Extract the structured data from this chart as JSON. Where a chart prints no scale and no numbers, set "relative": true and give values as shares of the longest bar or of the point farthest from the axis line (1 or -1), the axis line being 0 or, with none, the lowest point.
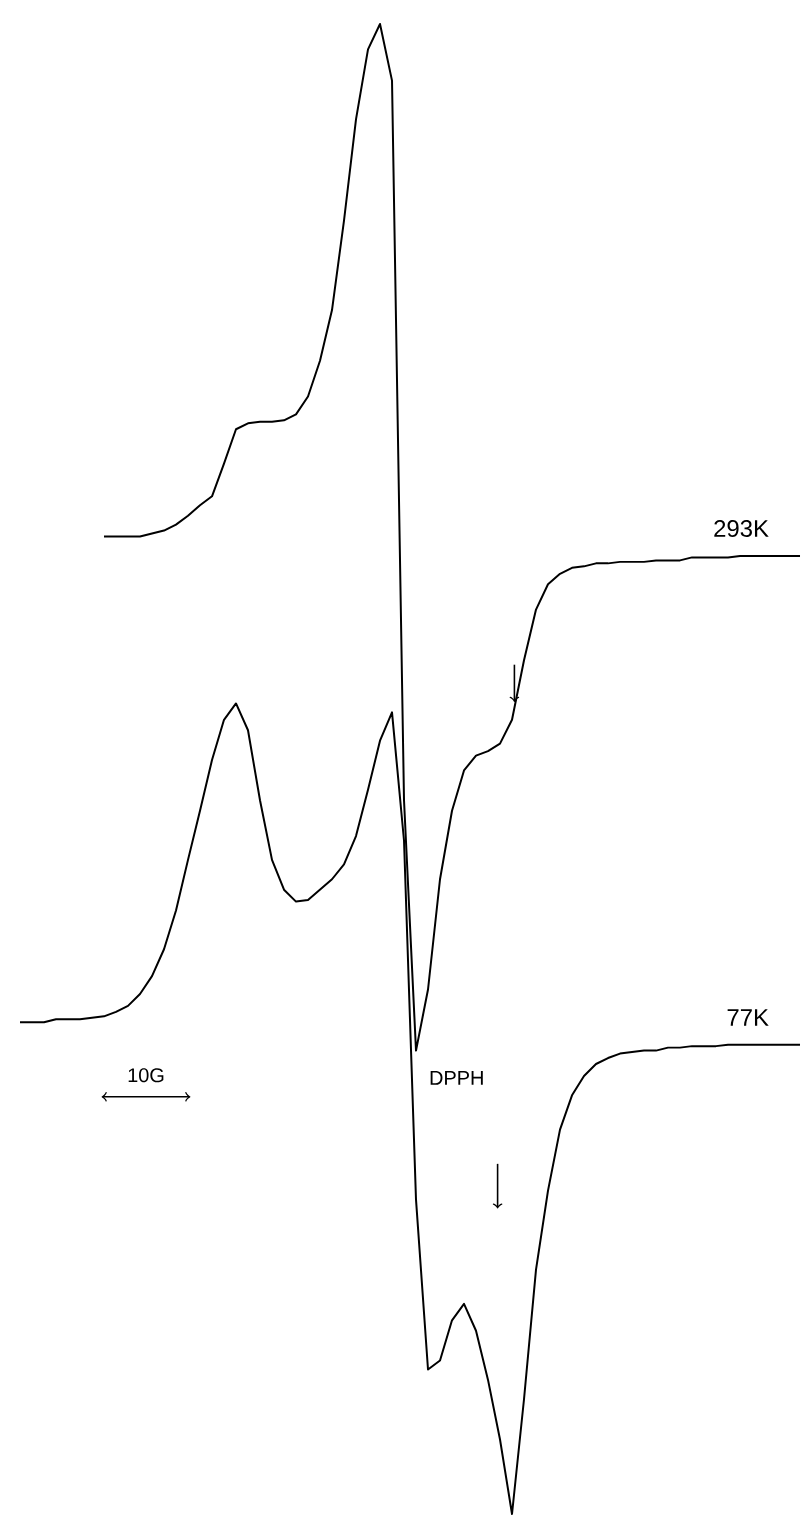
{
  "chart_data": {
    "type": "line",
    "relative": true,
    "legend": false,
    "marker": "none",
    "line_style": "solid",
    "categories": [
      null,
      null,
      null,
      null,
      null,
      null,
      null,
      null,
      null,
      null,
      null,
      null,
      null,
      null,
      null,
      null,
      null,
      null,
      null,
      null,
      null,
      null,
      null,
      null,
      null,
      null,
      null,
      null,
      null,
      null,
      null,
      null,
      null,
      null,
      null,
      null,
      null,
      null,
      null,
      null,
      null,
      null,
      null,
      null,
      null,
      null,
      null,
      null,
      null,
      null,
      null,
      null,
      null,
      null,
      null,
      null,
      null,
      null,
      null,
      null,
      null,
      null,
      null,
      null,
      null,
      null
    ],
    "series": [
      {
        "name": "293K",
        "color": "#000000",
        "values": [
          null,
          null,
          null,
          null,
          null,
          null,
          null,
          0.656,
          0.656,
          0.656,
          0.656,
          0.658,
          0.66,
          0.664,
          0.67,
          0.677,
          0.683,
          0.705,
          0.728,
          0.732,
          0.733,
          0.733,
          0.734,
          0.738,
          0.75,
          0.774,
          0.808,
          0.868,
          0.936,
          0.983,
          1.0,
          0.962,
          0.479,
          0.311,
          0.352,
          0.426,
          0.472,
          0.499,
          0.509,
          0.512,
          0.517,
          0.533,
          0.573,
          0.607,
          0.624,
          0.631,
          0.635,
          0.636,
          0.638,
          0.638,
          0.639,
          0.639,
          0.639,
          0.64,
          0.64,
          0.64,
          0.642,
          0.642,
          0.642,
          0.642,
          0.643,
          0.643,
          0.643,
          0.643,
          0.643,
          0.643
        ]
      },
      {
        "name": "77K",
        "color": "#000000",
        "values": [
          0.33,
          0.33,
          0.33,
          0.332,
          0.332,
          0.332,
          0.333,
          0.334,
          0.337,
          0.341,
          0.349,
          0.361,
          0.379,
          0.405,
          0.439,
          0.472,
          0.506,
          0.533,
          0.544,
          0.526,
          0.479,
          0.439,
          0.419,
          0.411,
          0.412,
          0.419,
          0.426,
          0.436,
          0.455,
          0.486,
          0.519,
          0.538,
          0.452,
          0.211,
          0.097,
          0.103,
          0.13,
          0.141,
          0.123,
          0.09,
          0.05,
          0.0,
          0.077,
          0.164,
          0.217,
          0.258,
          0.281,
          0.294,
          0.302,
          0.306,
          0.309,
          0.31,
          0.311,
          0.311,
          0.313,
          0.313,
          0.314,
          0.314,
          0.314,
          0.315,
          0.315,
          0.315,
          0.315,
          0.315,
          0.315,
          0.315
        ]
      }
    ],
    "annotations": [
      "DPPH",
      "10G"
    ]
  }
}
